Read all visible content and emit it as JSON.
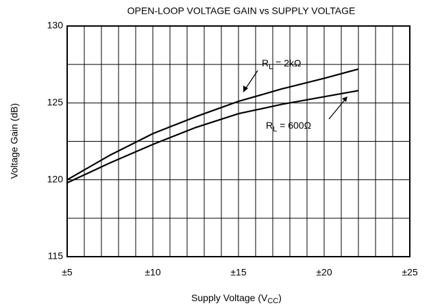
{
  "chart_data": {
    "type": "line",
    "title": "OPEN-LOOP VOLTAGE GAIN vs SUPPLY VOLTAGE",
    "y_label": "Voltage Gain (dB)",
    "x_label": [
      "Supply Voltage (V",
      "CC",
      ")"
    ],
    "xlim": [
      5,
      25
    ],
    "ylim": [
      115,
      130
    ],
    "xticks": [
      {
        "value": 5,
        "label": "±5"
      },
      {
        "value": 10,
        "label": "±10"
      },
      {
        "value": 15,
        "label": "±15"
      },
      {
        "value": 20,
        "label": "±20"
      },
      {
        "value": 25,
        "label": "±25"
      }
    ],
    "yticks": [
      115,
      120,
      125,
      130
    ],
    "xgrid": [
      6,
      7,
      8,
      9,
      10,
      11,
      12,
      13,
      14,
      15,
      16,
      17,
      18,
      19,
      20,
      21,
      22,
      23,
      24
    ],
    "ygrid": [
      117.5,
      120,
      122.5,
      125,
      127.5
    ],
    "grid": true,
    "x": [
      5,
      7.5,
      10,
      12.5,
      15,
      17.5,
      20,
      22
    ],
    "series": [
      {
        "color": "#000000",
        "values": [
          120.0,
          121.6,
          123.0,
          124.1,
          125.1,
          125.9,
          126.6,
          127.2
        ]
      },
      {
        "color": "#000000",
        "values": [
          119.8,
          121.1,
          122.3,
          123.4,
          124.3,
          124.9,
          125.4,
          125.8
        ]
      }
    ],
    "annotations": [
      {
        "text": [
          "R",
          "L",
          " = 2kΩ"
        ]
      },
      {
        "text": [
          "R",
          "L",
          " = 600Ω"
        ]
      }
    ]
  }
}
